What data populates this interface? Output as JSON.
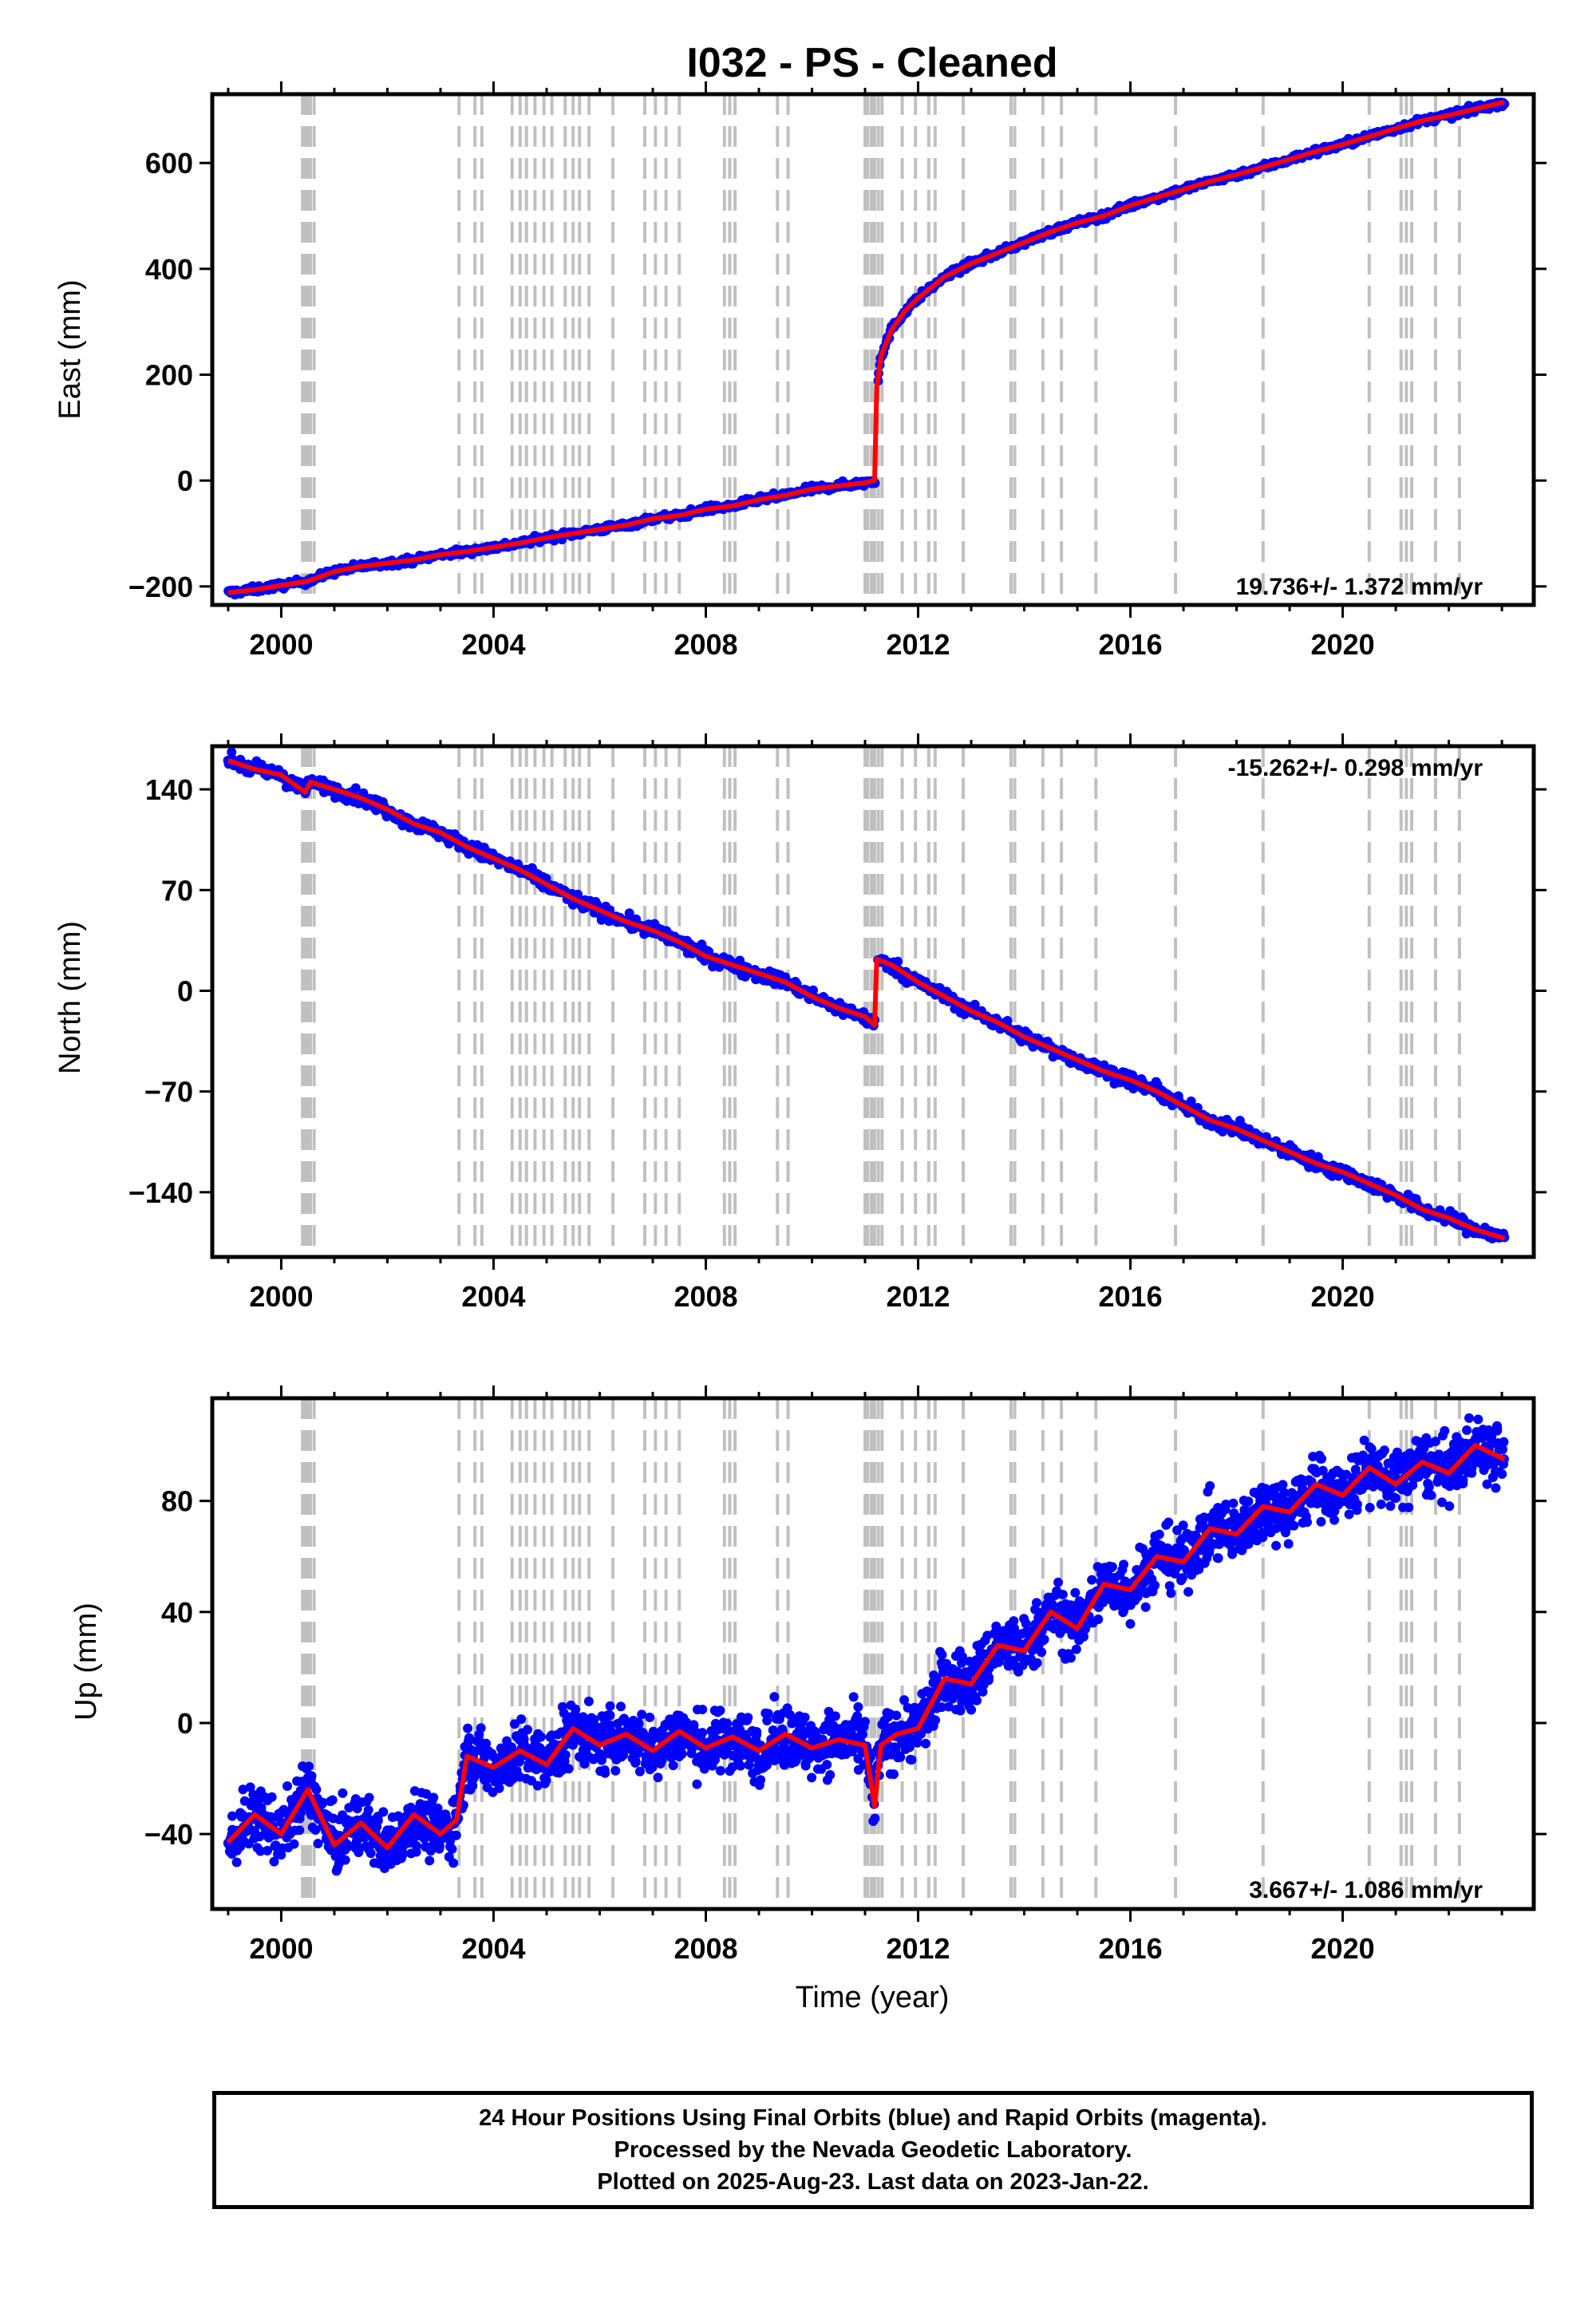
{
  "title": "I032  - PS - Cleaned",
  "xlabel": "Time (year)",
  "footer": {
    "lines": [
      "24 Hour Positions Using Final Orbits (blue) and Rapid Orbits (magenta).",
      "Processed by the Nevada Geodetic Laboratory.",
      "Plotted on 2025-Aug-23. Last data on 2023-Jan-22."
    ]
  },
  "colors": {
    "final_orbit_points": "#0000ff",
    "model_fit": "#ff0000",
    "antenna_change_lines": "#c0c0c0",
    "frame": "#000000"
  },
  "event_lines_year": [
    2000.4,
    2000.45,
    2000.5,
    2000.55,
    2000.62,
    2003.35,
    2003.65,
    2003.78,
    2004.35,
    2004.5,
    2004.62,
    2004.78,
    2004.95,
    2005.1,
    2005.35,
    2005.5,
    2005.62,
    2005.8,
    2006.25,
    2006.85,
    2007.05,
    2007.25,
    2007.5,
    2008.35,
    2008.45,
    2008.55,
    2009.35,
    2009.55,
    2011.0,
    2011.05,
    2011.12,
    2011.18,
    2011.25,
    2011.32,
    2011.7,
    2011.95,
    2012.2,
    2012.32,
    2012.85,
    2013.75,
    2013.82,
    2014.35,
    2014.7,
    2015.35,
    2016.85,
    2018.5,
    2020.5,
    2021.1,
    2021.2,
    2021.3,
    2021.75,
    2022.2
  ],
  "chart_data": [
    {
      "type": "scatter",
      "component": "east",
      "ylabel": "East (mm)",
      "xlim": [
        1998.7,
        2023.6
      ],
      "ylim": [
        -235,
        730
      ],
      "xticks": [
        2000,
        2004,
        2008,
        2012,
        2016,
        2020
      ],
      "yticks": [
        -200,
        0,
        200,
        400,
        600
      ],
      "ytick_labels": [
        "−200",
        "0",
        "200",
        "400",
        "600"
      ],
      "rate_label": "19.736+/- 1.372 mm/yr",
      "rate_position": "bottom-right",
      "series": [
        {
          "role": "final-orbit-daily-positions",
          "x": [
            1999.0,
            1999.5,
            2000.0,
            2000.5,
            2001.0,
            2001.5,
            2002.0,
            2002.5,
            2003.0,
            2003.5,
            2004.0,
            2004.5,
            2005.0,
            2005.5,
            2006.0,
            2006.5,
            2007.0,
            2007.5,
            2008.0,
            2008.5,
            2009.0,
            2009.5,
            2010.0,
            2010.5,
            2011.0,
            2011.18,
            2011.22,
            2011.3,
            2011.5,
            2011.75,
            2012.0,
            2012.5,
            2013.0,
            2013.5,
            2014.0,
            2014.5,
            2015.0,
            2015.5,
            2016.0,
            2016.5,
            2017.0,
            2017.5,
            2018.0,
            2018.5,
            2019.0,
            2019.5,
            2020.0,
            2020.5,
            2021.0,
            2021.5,
            2022.0,
            2022.5,
            2023.05
          ],
          "y": [
            -212,
            -206,
            -198,
            -190,
            -172,
            -162,
            -156,
            -150,
            -140,
            -134,
            -126,
            -118,
            -108,
            -100,
            -92,
            -84,
            -72,
            -66,
            -54,
            -48,
            -36,
            -28,
            -16,
            -10,
            -4,
            0,
            175,
            235,
            285,
            320,
            345,
            385,
            410,
            430,
            450,
            470,
            487,
            500,
            520,
            535,
            550,
            565,
            578,
            592,
            607,
            622,
            635,
            650,
            665,
            680,
            690,
            702,
            715
          ]
        }
      ]
    },
    {
      "type": "scatter",
      "component": "north",
      "ylabel": "North (mm)",
      "xlim": [
        1998.7,
        2023.6
      ],
      "ylim": [
        -185,
        170
      ],
      "xticks": [
        2000,
        2004,
        2008,
        2012,
        2016,
        2020
      ],
      "yticks": [
        -140,
        -70,
        0,
        70,
        140
      ],
      "ytick_labels": [
        "−140",
        "−70",
        "0",
        "70",
        "140"
      ],
      "rate_label": "-15.262+/- 0.298 mm/yr",
      "rate_position": "top-right",
      "series": [
        {
          "role": "final-orbit-daily-positions",
          "x": [
            1999.0,
            1999.5,
            2000.0,
            2000.45,
            2000.55,
            2001.0,
            2001.5,
            2002.0,
            2002.5,
            2003.0,
            2003.5,
            2004.0,
            2004.5,
            2005.0,
            2005.5,
            2006.0,
            2006.5,
            2007.0,
            2007.5,
            2008.0,
            2008.5,
            2009.0,
            2009.5,
            2010.0,
            2010.5,
            2011.0,
            2011.18,
            2011.22,
            2011.5,
            2012.0,
            2012.5,
            2013.0,
            2013.5,
            2014.0,
            2014.5,
            2015.0,
            2015.5,
            2016.0,
            2016.5,
            2017.0,
            2017.5,
            2018.0,
            2018.5,
            2019.0,
            2019.5,
            2020.0,
            2020.5,
            2021.0,
            2021.5,
            2022.0,
            2022.5,
            2023.05
          ],
          "y": [
            160,
            154,
            150,
            138,
            145,
            140,
            134,
            126,
            116,
            110,
            100,
            92,
            84,
            74,
            64,
            56,
            48,
            42,
            34,
            24,
            18,
            12,
            6,
            -4,
            -12,
            -18,
            -24,
            22,
            18,
            6,
            -4,
            -14,
            -22,
            -32,
            -40,
            -48,
            -56,
            -62,
            -70,
            -80,
            -90,
            -96,
            -104,
            -112,
            -120,
            -126,
            -134,
            -142,
            -152,
            -158,
            -166,
            -172
          ]
        }
      ]
    },
    {
      "type": "scatter",
      "component": "up",
      "ylabel": "Up (mm)",
      "xlabel": "Time (year)",
      "xlim": [
        1998.7,
        2023.6
      ],
      "ylim": [
        -67,
        117
      ],
      "xticks": [
        2000,
        2004,
        2008,
        2012,
        2016,
        2020
      ],
      "yticks": [
        -40,
        0,
        40,
        80
      ],
      "ytick_labels": [
        "−40",
        "0",
        "40",
        "80"
      ],
      "rate_label": "3.667+/- 1.086 mm/yr",
      "rate_position": "bottom-right",
      "series": [
        {
          "role": "final-orbit-daily-positions",
          "x": [
            1999.0,
            1999.5,
            2000.0,
            2000.5,
            2001.0,
            2001.5,
            2002.0,
            2002.5,
            2003.0,
            2003.3,
            2003.5,
            2004.0,
            2004.5,
            2005.0,
            2005.5,
            2006.0,
            2006.5,
            2007.0,
            2007.5,
            2008.0,
            2008.5,
            2009.0,
            2009.5,
            2010.0,
            2010.5,
            2011.0,
            2011.18,
            2011.3,
            2011.6,
            2012.0,
            2012.5,
            2013.0,
            2013.5,
            2014.0,
            2014.5,
            2015.0,
            2015.5,
            2016.0,
            2016.5,
            2017.0,
            2017.5,
            2018.0,
            2018.5,
            2019.0,
            2019.5,
            2020.0,
            2020.5,
            2021.0,
            2021.5,
            2022.0,
            2022.5,
            2023.05
          ],
          "y": [
            -43,
            -33,
            -40,
            -24,
            -44,
            -36,
            -45,
            -33,
            -40,
            -35,
            -12,
            -16,
            -10,
            -15,
            -2,
            -8,
            -4,
            -10,
            -3,
            -9,
            -5,
            -10,
            -4,
            -9,
            -6,
            -8,
            -30,
            -8,
            -4,
            -2,
            16,
            14,
            28,
            26,
            40,
            34,
            50,
            48,
            60,
            58,
            70,
            68,
            78,
            76,
            86,
            82,
            92,
            86,
            94,
            90,
            100,
            95
          ]
        }
      ]
    }
  ]
}
